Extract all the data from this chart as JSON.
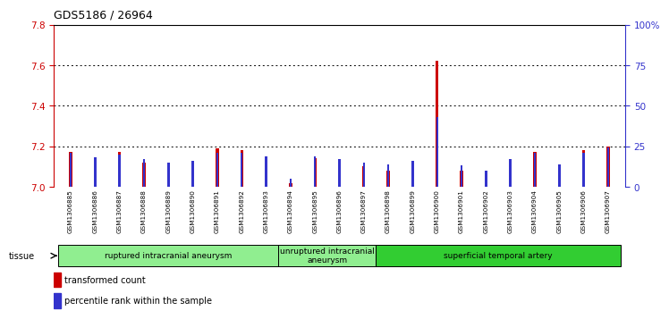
{
  "title": "GDS5186 / 26964",
  "samples": [
    "GSM1306885",
    "GSM1306886",
    "GSM1306887",
    "GSM1306888",
    "GSM1306889",
    "GSM1306890",
    "GSM1306891",
    "GSM1306892",
    "GSM1306893",
    "GSM1306894",
    "GSM1306895",
    "GSM1306896",
    "GSM1306897",
    "GSM1306898",
    "GSM1306899",
    "GSM1306900",
    "GSM1306901",
    "GSM1306902",
    "GSM1306903",
    "GSM1306904",
    "GSM1306905",
    "GSM1306906",
    "GSM1306907"
  ],
  "red_values": [
    7.17,
    7.12,
    7.17,
    7.12,
    7.09,
    7.1,
    7.19,
    7.18,
    7.15,
    7.02,
    7.14,
    7.12,
    7.1,
    7.08,
    7.12,
    7.62,
    7.08,
    7.05,
    7.12,
    7.17,
    7.09,
    7.18,
    7.2
  ],
  "blue_values": [
    21,
    18,
    20,
    17,
    15,
    16,
    21,
    21,
    19,
    5,
    19,
    17,
    15,
    14,
    16,
    43,
    13,
    10,
    17,
    21,
    14,
    21,
    24
  ],
  "ylim_left": [
    7.0,
    7.8
  ],
  "ylim_right": [
    0,
    100
  ],
  "yticks_left": [
    7.0,
    7.2,
    7.4,
    7.6,
    7.8
  ],
  "yticks_right": [
    0,
    25,
    50,
    75,
    100
  ],
  "ytick_labels_right": [
    "0",
    "25",
    "50",
    "75",
    "100%"
  ],
  "groups": [
    {
      "label": "ruptured intracranial aneurysm",
      "start": 0,
      "end": 9
    },
    {
      "label": "unruptured intracranial\naneurysm",
      "start": 9,
      "end": 13
    },
    {
      "label": "superficial temporal artery",
      "start": 13,
      "end": 23
    }
  ],
  "group_colors": [
    "#90EE90",
    "#90EE90",
    "#32CD32"
  ],
  "tissue_label": "tissue",
  "legend_red": "transformed count",
  "legend_blue": "percentile rank within the sample",
  "red_color": "#CC0000",
  "blue_color": "#3333CC",
  "xtick_bg": "#C8C8C8",
  "plot_bg": "#FFFFFF",
  "bar_width": 0.12,
  "blue_bar_width": 0.09
}
